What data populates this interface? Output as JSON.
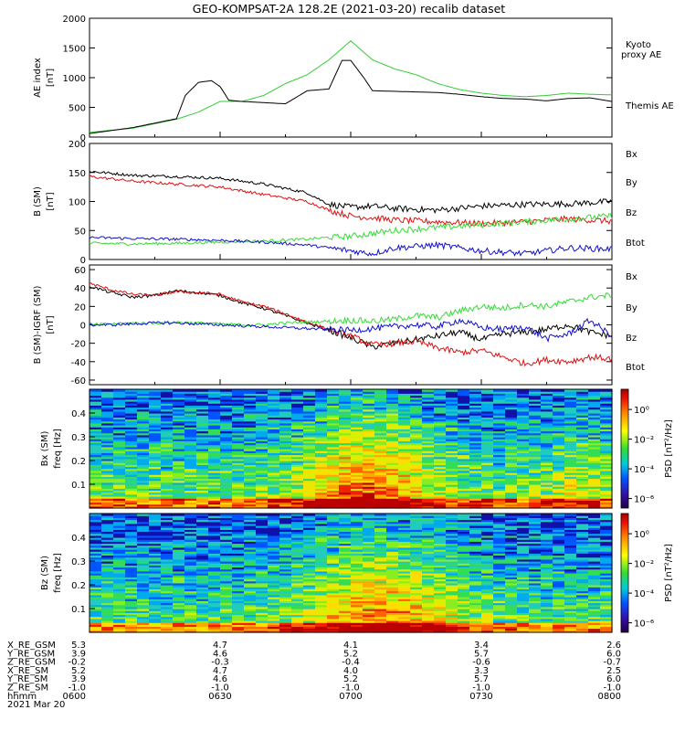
{
  "title": "GEO-KOMPSAT-2A 128.2E (2021-03-20) recalib dataset",
  "colors": {
    "black": "#000000",
    "green": "#33dd33",
    "red": "#dd1111",
    "blue": "#1111cc",
    "kyoto_green": "#33cc33"
  },
  "chart_data": [
    {
      "type": "line",
      "panel": "ae",
      "ylabel": "AE index",
      "yunit": "[nT]",
      "ylim": [
        0,
        2000
      ],
      "yticks": [
        0,
        500,
        1000,
        1500,
        2000
      ],
      "xlim": [
        0,
        120
      ],
      "legend": [
        "Kyoto",
        "proxy AE",
        "Themis AE"
      ],
      "series": [
        {
          "name": "Kyoto proxy AE",
          "color": "#33cc33",
          "x": [
            0,
            10,
            20,
            25,
            30,
            35,
            40,
            45,
            50,
            55,
            60,
            65,
            70,
            75,
            80,
            85,
            90,
            95,
            100,
            105,
            110,
            115,
            120
          ],
          "values": [
            80,
            150,
            300,
            420,
            600,
            600,
            700,
            900,
            1050,
            1300,
            1620,
            1300,
            1150,
            1050,
            900,
            800,
            740,
            700,
            680,
            700,
            740,
            720,
            710
          ]
        },
        {
          "name": "Themis AE",
          "color": "#000000",
          "x": [
            0,
            10,
            20,
            22,
            25,
            28,
            30,
            32,
            35,
            40,
            45,
            50,
            55,
            58,
            60,
            63,
            65,
            70,
            75,
            80,
            85,
            90,
            95,
            100,
            105,
            110,
            115,
            120
          ],
          "values": [
            60,
            160,
            310,
            700,
            920,
            950,
            850,
            620,
            600,
            580,
            560,
            780,
            810,
            1290,
            1290,
            1000,
            780,
            770,
            760,
            750,
            720,
            680,
            650,
            640,
            610,
            650,
            660,
            600
          ]
        }
      ]
    },
    {
      "type": "line",
      "panel": "b",
      "ylabel": "B (SM)",
      "yunit": "[nT]",
      "ylim": [
        0,
        200
      ],
      "yticks": [
        0,
        50,
        100,
        150,
        200
      ],
      "xlim": [
        0,
        120
      ],
      "legend": [
        "Bx",
        "By",
        "Bz",
        "Btot"
      ],
      "series": [
        {
          "name": "Btot",
          "color": "#000000",
          "x": [
            0,
            10,
            20,
            30,
            40,
            50,
            55,
            60,
            65,
            70,
            80,
            90,
            100,
            110,
            120
          ],
          "values": [
            152,
            145,
            143,
            140,
            130,
            115,
            95,
            90,
            92,
            88,
            85,
            92,
            95,
            96,
            100
          ]
        },
        {
          "name": "Bz",
          "color": "#dd1111",
          "x": [
            0,
            10,
            20,
            30,
            40,
            50,
            55,
            60,
            65,
            70,
            80,
            90,
            100,
            110,
            120
          ],
          "values": [
            143,
            135,
            130,
            125,
            112,
            100,
            85,
            75,
            72,
            68,
            65,
            62,
            65,
            70,
            66
          ]
        },
        {
          "name": "By",
          "color": "#33dd33",
          "x": [
            0,
            10,
            20,
            30,
            40,
            50,
            55,
            60,
            65,
            70,
            80,
            90,
            100,
            110,
            120
          ],
          "values": [
            28,
            27,
            28,
            30,
            32,
            35,
            38,
            40,
            45,
            50,
            55,
            60,
            65,
            70,
            75
          ]
        },
        {
          "name": "Bx",
          "color": "#1111cc",
          "x": [
            0,
            10,
            20,
            30,
            40,
            50,
            55,
            60,
            65,
            70,
            80,
            90,
            100,
            110,
            120
          ],
          "values": [
            38,
            36,
            35,
            33,
            30,
            25,
            20,
            15,
            10,
            20,
            25,
            15,
            10,
            20,
            18
          ]
        }
      ]
    },
    {
      "type": "line",
      "panel": "db",
      "ylabel": "B (SM)-IGRF (SM)",
      "yunit": "[nT]",
      "ylim": [
        -65,
        65
      ],
      "yticks": [
        -60,
        -40,
        -20,
        0,
        20,
        40,
        60
      ],
      "xlim": [
        0,
        120
      ],
      "legend": [
        "Bx",
        "By",
        "Bz",
        "Btot"
      ],
      "series": [
        {
          "name": "Btot",
          "color": "#000000",
          "x": [
            0,
            5,
            10,
            15,
            20,
            25,
            30,
            35,
            40,
            45,
            50,
            55,
            60,
            65,
            70,
            75,
            80,
            85,
            90,
            95,
            100,
            105,
            110,
            115,
            120
          ],
          "values": [
            42,
            35,
            30,
            32,
            37,
            35,
            32,
            24,
            18,
            10,
            2,
            -6,
            -14,
            -24,
            -20,
            -16,
            -12,
            -8,
            -16,
            -10,
            -8,
            -5,
            0,
            -8,
            -12
          ]
        },
        {
          "name": "Bz",
          "color": "#dd1111",
          "x": [
            0,
            5,
            10,
            15,
            20,
            25,
            30,
            35,
            40,
            45,
            50,
            55,
            60,
            65,
            70,
            75,
            80,
            85,
            90,
            95,
            100,
            105,
            110,
            115,
            120
          ],
          "values": [
            45,
            38,
            33,
            32,
            36,
            35,
            33,
            25,
            20,
            12,
            3,
            -5,
            -12,
            -22,
            -20,
            -18,
            -25,
            -30,
            -28,
            -35,
            -42,
            -38,
            -40,
            -35,
            -37
          ]
        },
        {
          "name": "By",
          "color": "#33dd33",
          "x": [
            0,
            5,
            10,
            15,
            20,
            25,
            30,
            35,
            40,
            45,
            50,
            55,
            60,
            65,
            70,
            75,
            80,
            85,
            90,
            95,
            100,
            105,
            110,
            115,
            120
          ],
          "values": [
            0,
            1,
            2,
            2,
            3,
            2,
            1,
            0,
            0,
            2,
            3,
            4,
            5,
            4,
            6,
            10,
            8,
            15,
            20,
            18,
            22,
            20,
            25,
            30,
            32
          ]
        },
        {
          "name": "Bx",
          "color": "#1111cc",
          "x": [
            0,
            5,
            10,
            15,
            20,
            25,
            30,
            35,
            40,
            45,
            50,
            55,
            60,
            65,
            70,
            75,
            80,
            85,
            90,
            95,
            100,
            105,
            110,
            115,
            120
          ],
          "values": [
            0,
            0,
            1,
            2,
            2,
            1,
            0,
            -1,
            -2,
            -3,
            -4,
            -5,
            -6,
            -4,
            -2,
            0,
            -2,
            5,
            -3,
            -5,
            -2,
            -15,
            -10,
            5,
            -12
          ]
        }
      ]
    },
    {
      "type": "heatmap",
      "panel": "spec_bx",
      "ylabel": "Bx (SM)",
      "yunit": "freq [Hz]",
      "yticks": [
        0.1,
        0.2,
        0.3,
        0.4
      ],
      "ylim": [
        0,
        0.5
      ],
      "colorbar_label": "PSD [nT²/Hz]",
      "colorbar_ticks": [
        "10⁰",
        "10⁻²",
        "10⁻⁴",
        "10⁻⁶"
      ]
    },
    {
      "type": "heatmap",
      "panel": "spec_bz",
      "ylabel": "Bz (SM)",
      "yunit": "freq [Hz]",
      "yticks": [
        0.1,
        0.2,
        0.3,
        0.4
      ],
      "ylim": [
        0,
        0.5
      ],
      "colorbar_label": "PSD [nT²/Hz]",
      "colorbar_ticks": [
        "10⁰",
        "10⁻²",
        "10⁻⁴",
        "10⁻⁶"
      ]
    }
  ],
  "ephemeris": {
    "rows": [
      {
        "label": "X_RE_GSM",
        "values": [
          "5.3",
          "4.7",
          "4.1",
          "3.4",
          "2.6"
        ]
      },
      {
        "label": "Y_RE_GSM",
        "values": [
          "3.9",
          "4.6",
          "5.2",
          "5.7",
          "6.0"
        ]
      },
      {
        "label": "Z_RE_GSM",
        "values": [
          "-0.2",
          "-0.3",
          "-0.4",
          "-0.6",
          "-0.7"
        ]
      },
      {
        "label": "X_RE_SM",
        "values": [
          "5.2",
          "4.7",
          "4.0",
          "3.3",
          "2.5"
        ]
      },
      {
        "label": "Y_RE_SM",
        "values": [
          "3.9",
          "4.6",
          "5.2",
          "5.7",
          "6.0"
        ]
      },
      {
        "label": "Z_RE_SM",
        "values": [
          "-1.0",
          "-1.0",
          "-1.0",
          "-1.0",
          "-1.0"
        ]
      },
      {
        "label": "hhmm",
        "values": [
          "0600",
          "0630",
          "0700",
          "0730",
          "0800"
        ]
      }
    ],
    "date": "2021 Mar 20"
  }
}
